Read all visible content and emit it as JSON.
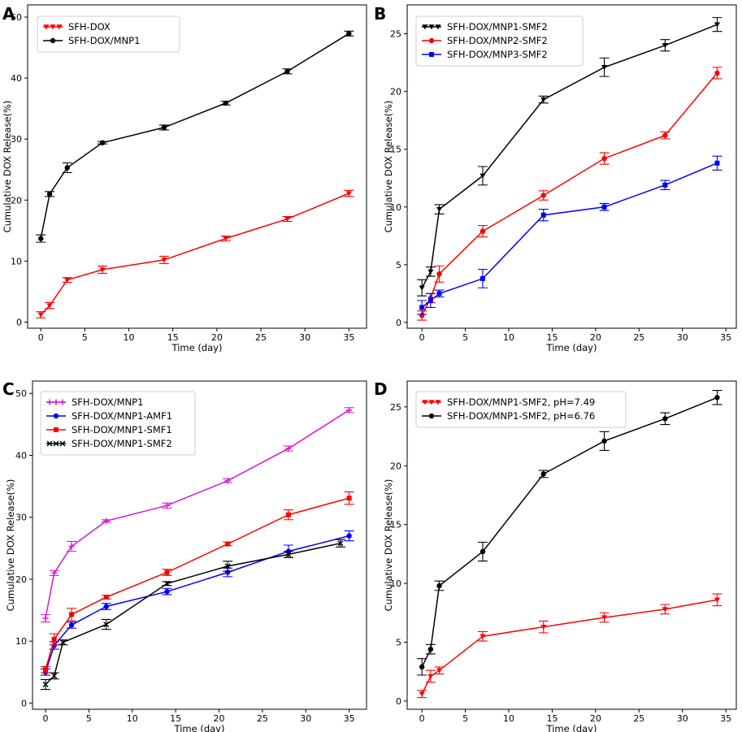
{
  "chart_data": [
    {
      "type": "line",
      "panel_label": "A",
      "xlabel": "Time (day)",
      "ylabel": "Cumulative DOX Release(%)",
      "xlim": [
        -1.5,
        37
      ],
      "ylim": [
        -1,
        52
      ],
      "xticks": [
        0,
        5,
        10,
        15,
        20,
        25,
        30,
        35
      ],
      "yticks": [
        0,
        10,
        20,
        30,
        40,
        50
      ],
      "legend_position": "top-left",
      "series": [
        {
          "name": "SFH-DOX",
          "color": "#ff0000",
          "marker": "triangle-down",
          "x": [
            0,
            1,
            3,
            7,
            14,
            21,
            28,
            35
          ],
          "y": [
            1.2,
            2.7,
            6.9,
            8.6,
            10.2,
            13.7,
            16.9,
            21.1
          ],
          "err": [
            0.5,
            0.5,
            0.4,
            0.6,
            0.6,
            0.4,
            0.4,
            0.5
          ]
        },
        {
          "name": "SFH-DOX/MNP1",
          "color": "#000000",
          "marker": "circle",
          "x": [
            0,
            1,
            3,
            7,
            14,
            21,
            28,
            35
          ],
          "y": [
            13.7,
            21.0,
            25.3,
            29.4,
            31.9,
            35.9,
            41.1,
            47.3
          ],
          "err": [
            0.6,
            0.4,
            0.8,
            0.2,
            0.4,
            0.3,
            0.4,
            0.4
          ]
        }
      ]
    },
    {
      "type": "line",
      "panel_label": "B",
      "xlabel": "Time (day)",
      "ylabel": "Cumulative DOX Release(%)",
      "xlim": [
        -1.7,
        36.2
      ],
      "ylim": [
        -0.5,
        27.5
      ],
      "xticks": [
        0,
        5,
        10,
        15,
        20,
        25,
        30,
        35
      ],
      "yticks": [
        0,
        5,
        10,
        15,
        20,
        25
      ],
      "legend_position": "top-left",
      "series": [
        {
          "name": "SFH-DOX/MNP1-SMF2",
          "color": "#000000",
          "marker": "triangle-down",
          "x": [
            0,
            1,
            2,
            7,
            14,
            21,
            28,
            34
          ],
          "y": [
            3.0,
            4.4,
            9.8,
            12.7,
            19.3,
            22.1,
            24.0,
            25.8
          ],
          "err": [
            0.7,
            0.4,
            0.4,
            0.8,
            0.3,
            0.8,
            0.5,
            0.6
          ]
        },
        {
          "name": "SFH-DOX/MNP2-SMF2",
          "color": "#ff0000",
          "marker": "circle",
          "x": [
            0,
            1,
            2,
            7,
            14,
            21,
            28,
            34
          ],
          "y": [
            0.6,
            2.1,
            4.2,
            7.9,
            11.0,
            14.2,
            16.2,
            21.6
          ],
          "err": [
            0.4,
            0.4,
            0.7,
            0.5,
            0.4,
            0.5,
            0.3,
            0.5
          ]
        },
        {
          "name": "SFH-DOX/MNP3-SMF2",
          "color": "#0000ff",
          "marker": "square",
          "x": [
            0,
            1,
            2,
            7,
            14,
            21,
            28,
            34
          ],
          "y": [
            1.3,
            1.9,
            2.5,
            3.8,
            9.3,
            10.0,
            11.9,
            13.8
          ],
          "err": [
            0.6,
            0.6,
            0.3,
            0.8,
            0.5,
            0.3,
            0.4,
            0.6
          ]
        }
      ]
    },
    {
      "type": "line",
      "panel_label": "C",
      "xlabel": "Time (day)",
      "ylabel": "Cumulative DOX Release(%)",
      "xlim": [
        -1.5,
        37
      ],
      "ylim": [
        -1,
        52
      ],
      "xticks": [
        0,
        5,
        10,
        15,
        20,
        25,
        30,
        35
      ],
      "yticks": [
        0,
        10,
        20,
        30,
        40,
        50
      ],
      "legend_position": "top-left",
      "series": [
        {
          "name": "SFH-DOX/MNP1",
          "color": "#d619d6",
          "marker": "plus",
          "x": [
            0,
            1,
            3,
            7,
            14,
            21,
            28,
            35
          ],
          "y": [
            13.7,
            21.0,
            25.3,
            29.4,
            31.9,
            35.9,
            41.1,
            47.3
          ],
          "err": [
            0.6,
            0.4,
            0.8,
            0.2,
            0.4,
            0.3,
            0.4,
            0.4
          ]
        },
        {
          "name": "SFH-DOX/MNP1-AMF1",
          "color": "#0000ff",
          "marker": "circle",
          "x": [
            0,
            1,
            3,
            7,
            14,
            21,
            28,
            35
          ],
          "y": [
            5.0,
            9.3,
            12.6,
            15.6,
            18.0,
            21.1,
            24.5,
            27.0
          ],
          "err": [
            0.5,
            0.6,
            0.5,
            0.5,
            0.5,
            0.7,
            1.0,
            0.8
          ]
        },
        {
          "name": "SFH-DOX/MNP1-SMF1",
          "color": "#ff0000",
          "marker": "square",
          "x": [
            0,
            1,
            3,
            7,
            14,
            21,
            28,
            35
          ],
          "y": [
            5.4,
            10.3,
            14.3,
            17.1,
            21.1,
            25.7,
            30.4,
            33.1
          ],
          "err": [
            0.5,
            0.9,
            1.0,
            0.3,
            0.5,
            0.3,
            0.8,
            1.0
          ]
        },
        {
          "name": "SFH-DOX/MNP1-SMF2",
          "color": "#000000",
          "marker": "x",
          "x": [
            0,
            1,
            2,
            7,
            14,
            21,
            28,
            34
          ],
          "y": [
            3.0,
            4.4,
            9.8,
            12.7,
            19.3,
            22.1,
            24.0,
            25.8
          ],
          "err": [
            0.8,
            0.5,
            0.4,
            0.8,
            0.3,
            0.8,
            0.5,
            0.6
          ]
        }
      ]
    },
    {
      "type": "line",
      "panel_label": "D",
      "xlabel": "Time (day)",
      "ylabel": "Cumulative DOX Release(%)",
      "xlim": [
        -1.7,
        36.2
      ],
      "ylim": [
        -0.7,
        27.2
      ],
      "xticks": [
        0,
        5,
        10,
        15,
        20,
        25,
        30,
        35
      ],
      "yticks": [
        0,
        5,
        10,
        15,
        20,
        25
      ],
      "legend_position": "top-left",
      "series": [
        {
          "name": "SFH-DOX/MNP1-SMF2, pH=7.49",
          "color": "#ff0000",
          "marker": "triangle-down",
          "x": [
            0,
            1,
            2,
            7,
            14,
            21,
            28,
            34
          ],
          "y": [
            0.6,
            2.1,
            2.6,
            5.5,
            6.3,
            7.1,
            7.8,
            8.6
          ],
          "err": [
            0.3,
            0.5,
            0.3,
            0.4,
            0.5,
            0.4,
            0.4,
            0.5
          ]
        },
        {
          "name": "SFH-DOX/MNP1-SMF2, pH=6.76",
          "color": "#000000",
          "marker": "circle",
          "x": [
            0,
            1,
            2,
            7,
            14,
            21,
            28,
            34
          ],
          "y": [
            2.9,
            4.4,
            9.8,
            12.7,
            19.3,
            22.1,
            24.0,
            25.8
          ],
          "err": [
            0.7,
            0.4,
            0.4,
            0.8,
            0.3,
            0.8,
            0.5,
            0.6
          ]
        }
      ]
    }
  ]
}
